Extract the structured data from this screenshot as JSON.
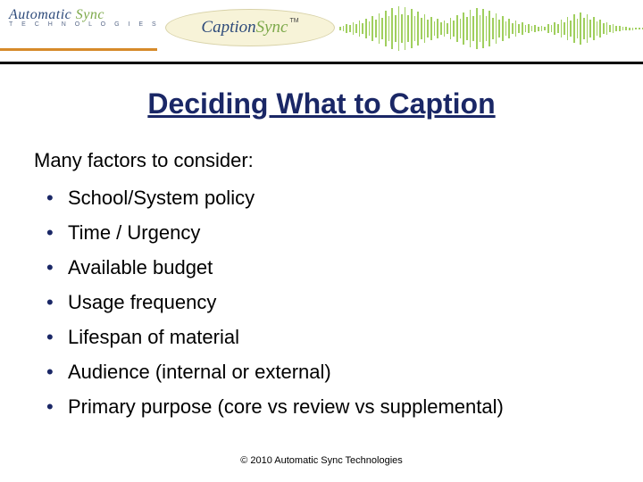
{
  "header": {
    "logo_left": {
      "word1": "Automatic",
      "word2": "Sync",
      "subtitle": "T E C H N O L O G I E S"
    },
    "logo_right": {
      "word1": "Caption",
      "word2": "Sync",
      "tm": "TM"
    },
    "colors": {
      "orange_rule": "#d68a2a",
      "black_rule": "#000000",
      "waveform": "#8fc742",
      "oval_fill": "#f7f3d8",
      "brand_blue": "#2d4a7a",
      "brand_green": "#7da94a"
    },
    "waveform_heights": [
      4,
      6,
      10,
      8,
      14,
      10,
      18,
      12,
      22,
      16,
      28,
      20,
      34,
      24,
      40,
      28,
      46,
      30,
      50,
      32,
      48,
      30,
      44,
      28,
      38,
      24,
      32,
      20,
      26,
      16,
      22,
      14,
      18,
      12,
      24,
      18,
      30,
      22,
      36,
      26,
      42,
      28,
      46,
      30,
      44,
      28,
      40,
      24,
      34,
      20,
      28,
      16,
      22,
      12,
      18,
      10,
      14,
      8,
      10,
      6,
      8,
      5,
      6,
      4,
      10,
      8,
      14,
      10,
      20,
      14,
      26,
      18,
      32,
      22,
      36,
      24,
      32,
      20,
      26,
      16,
      20,
      12,
      14,
      8,
      10,
      6,
      6,
      4,
      4,
      3,
      3,
      2,
      2,
      2
    ]
  },
  "slide": {
    "title": "Deciding What to Caption",
    "intro": "Many factors to consider:",
    "bullets": [
      "School/System policy",
      "Time / Urgency",
      "Available budget",
      "Usage frequency",
      "Lifespan of material",
      "Audience (internal or external)",
      "Primary purpose (core vs review vs supplemental)"
    ],
    "title_color": "#1a2766",
    "bullet_color": "#1a2766",
    "text_color": "#000000",
    "title_fontsize": 32,
    "body_fontsize": 22
  },
  "footer": {
    "text": "© 2010 Automatic Sync Technologies"
  }
}
